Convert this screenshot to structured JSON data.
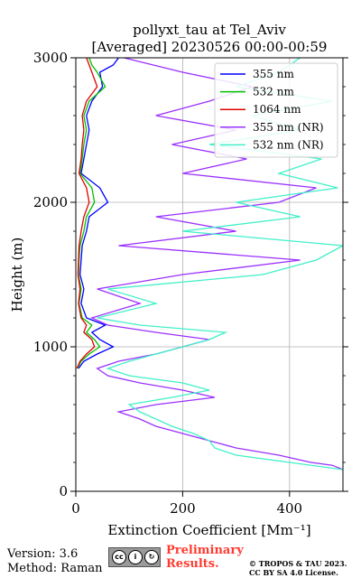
{
  "chart_data": {
    "type": "line",
    "title_line1": "pollyxt_tau at Tel_Aviv",
    "title_line2": "[Averaged] 20230526 00:00-00:59",
    "xlabel": "Extinction Coefficient [Mm⁻¹]",
    "ylabel": "Height (m)",
    "xlim": [
      0,
      500
    ],
    "ylim": [
      0,
      3000
    ],
    "x_ticks": [
      "0",
      "200",
      "400"
    ],
    "y_ticks": [
      "0",
      "1000",
      "2000",
      "3000"
    ],
    "grid": true,
    "legend_position": "top-right",
    "series": [
      {
        "name": "355 nm",
        "color": "#0000ff",
        "y": [
          850,
          900,
          950,
          1000,
          1050,
          1100,
          1150,
          1200,
          1300,
          1400,
          1500,
          1600,
          1700,
          1800,
          1900,
          2000,
          2100,
          2200,
          2300,
          2400,
          2500,
          2600,
          2700,
          2800,
          2900,
          2950,
          3000
        ],
        "x": [
          5,
          15,
          40,
          70,
          45,
          30,
          55,
          20,
          10,
          15,
          8,
          10,
          12,
          20,
          25,
          60,
          45,
          10,
          15,
          20,
          25,
          20,
          30,
          50,
          45,
          70,
          80
        ]
      },
      {
        "name": "532 nm",
        "color": "#00c000",
        "y": [
          850,
          900,
          950,
          1000,
          1050,
          1100,
          1150,
          1200,
          1300,
          1400,
          1500,
          1600,
          1700,
          1800,
          1900,
          2000,
          2100,
          2200,
          2300,
          2400,
          2500,
          2600,
          2700,
          2800,
          2900,
          2950,
          3000
        ],
        "x": [
          3,
          10,
          25,
          45,
          35,
          20,
          30,
          12,
          6,
          10,
          5,
          6,
          8,
          15,
          20,
          35,
          30,
          8,
          12,
          15,
          20,
          15,
          25,
          55,
          40,
          30,
          25
        ]
      },
      {
        "name": "1064 nm",
        "color": "#e00000",
        "y": [
          850,
          900,
          950,
          1000,
          1050,
          1100,
          1150,
          1200,
          1300,
          1400,
          1500,
          1600,
          1700,
          1800,
          1900,
          2000,
          2100,
          2200,
          2300,
          2400,
          2500,
          2600,
          2700,
          2800,
          2900,
          2950,
          3000
        ],
        "x": [
          2,
          8,
          20,
          35,
          30,
          15,
          20,
          10,
          5,
          8,
          4,
          5,
          6,
          10,
          15,
          25,
          20,
          6,
          10,
          12,
          15,
          12,
          20,
          40,
          30,
          25,
          20
        ]
      },
      {
        "name": "355 nm (NR)",
        "color": "#9b30ff",
        "y": [
          150,
          180,
          200,
          250,
          300,
          350,
          400,
          450,
          500,
          550,
          600,
          650,
          700,
          750,
          800,
          850,
          900,
          950,
          1000,
          1050,
          1100,
          1150,
          1200,
          1300,
          1400,
          1500,
          1600,
          1700,
          1800,
          1900,
          2000,
          2100,
          2200,
          2300,
          2400,
          2500,
          2600,
          2700,
          2800,
          2900,
          3000
        ],
        "x": [
          500,
          480,
          440,
          380,
          300,
          250,
          200,
          150,
          120,
          80,
          150,
          260,
          200,
          120,
          60,
          40,
          80,
          150,
          200,
          250,
          150,
          60,
          30,
          120,
          40,
          200,
          420,
          80,
          300,
          150,
          380,
          450,
          200,
          320,
          180,
          300,
          150,
          250,
          330,
          200,
          90
        ]
      },
      {
        "name": "532 nm (NR)",
        "color": "#40f0c8",
        "y": [
          150,
          200,
          250,
          300,
          350,
          400,
          450,
          500,
          550,
          600,
          650,
          700,
          750,
          800,
          850,
          900,
          950,
          1000,
          1050,
          1100,
          1150,
          1200,
          1300,
          1400,
          1500,
          1600,
          1700,
          1800,
          1900,
          2000,
          2100,
          2200,
          2300,
          2400,
          2500,
          2600,
          2700,
          2800,
          2900,
          3000
        ],
        "x": [
          500,
          400,
          300,
          260,
          250,
          220,
          180,
          150,
          120,
          100,
          180,
          250,
          200,
          100,
          60,
          100,
          150,
          200,
          250,
          280,
          120,
          40,
          150,
          60,
          350,
          450,
          500,
          200,
          420,
          300,
          490,
          380,
          460,
          250,
          420,
          330,
          480,
          300,
          380,
          420
        ]
      }
    ]
  },
  "footer": {
    "version": "Version: 3.6",
    "method": "Method: Raman",
    "preliminary_1": "Preliminary",
    "preliminary_2": "Results.",
    "copyright_1": "© TROPOS & TAU 2023.",
    "copyright_2": "CC BY SA 4.0 License.",
    "cc_badge": "cc"
  }
}
